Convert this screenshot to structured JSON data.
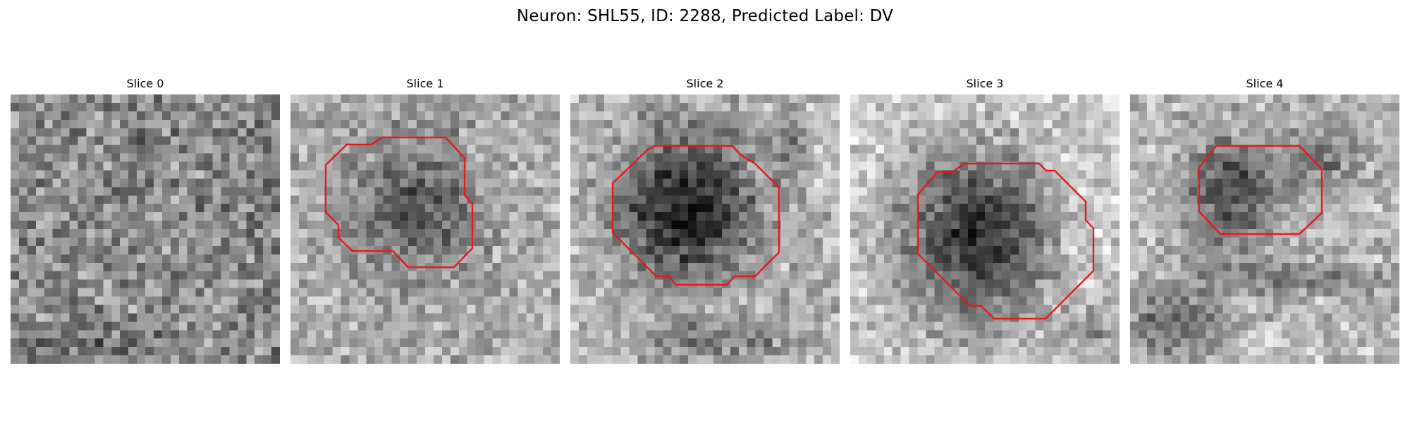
{
  "figure": {
    "title": "Neuron: SHL55, ID: 2288, Predicted Label: DV"
  },
  "outline_color": "#e41a1c",
  "panels": [
    {
      "title": "Slice 0",
      "has_outline": false
    },
    {
      "title": "Slice 1",
      "has_outline": true
    },
    {
      "title": "Slice 2",
      "has_outline": true
    },
    {
      "title": "Slice 3",
      "has_outline": true
    },
    {
      "title": "Slice 4",
      "has_outline": true
    }
  ]
}
